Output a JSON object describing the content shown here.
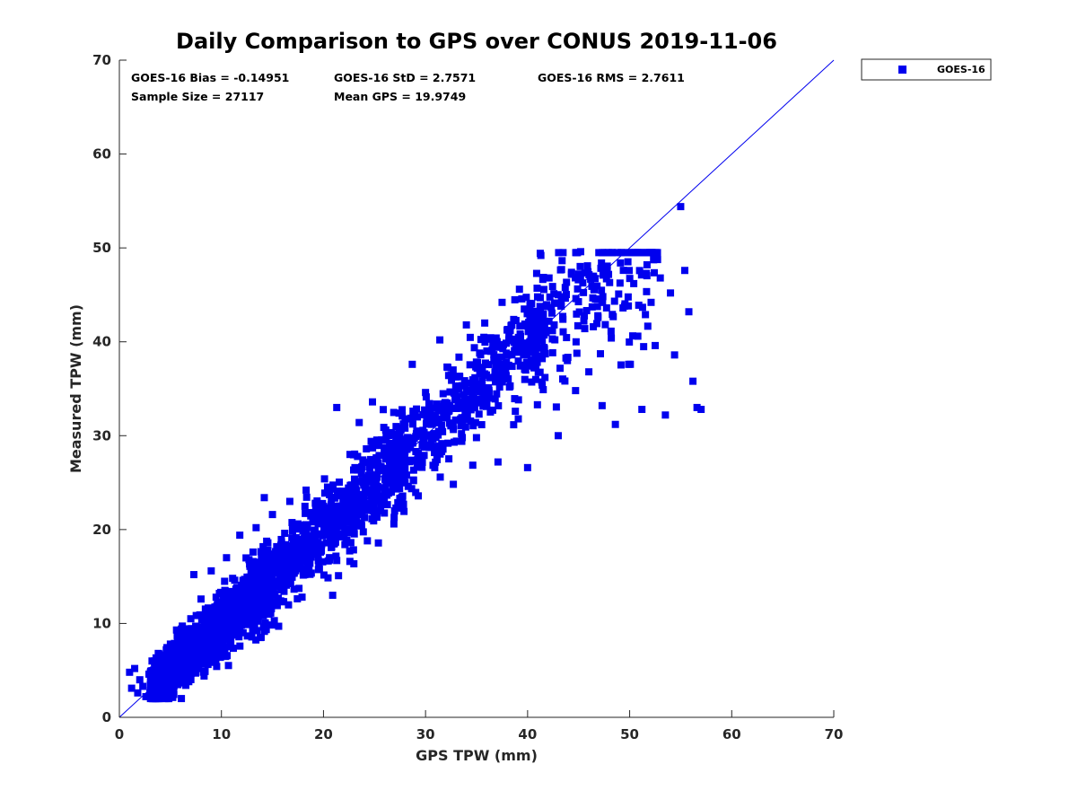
{
  "chart_data": {
    "type": "scatter",
    "title": "Daily Comparison to GPS over CONUS 2019-11-06",
    "xlabel": "GPS TPW (mm)",
    "ylabel": "Measured TPW (mm)",
    "xlim": [
      0,
      70
    ],
    "ylim": [
      0,
      70
    ],
    "xticks": [
      "0",
      "10",
      "20",
      "30",
      "40",
      "50",
      "60",
      "70"
    ],
    "yticks": [
      "0",
      "10",
      "20",
      "30",
      "40",
      "50",
      "60",
      "70"
    ],
    "grid": false,
    "legend_position": "outside-top-right",
    "reference_line": {
      "name": "1:1",
      "from": [
        0,
        0
      ],
      "to": [
        70,
        70
      ]
    },
    "stats": [
      "GOES-16 Bias = -0.14951",
      "GOES-16 StD = 2.7571",
      "GOES-16 RMS = 2.7611",
      "Sample Size = 27117",
      "Mean GPS = 19.9749"
    ],
    "series": [
      {
        "name": "GOES-16",
        "color": "#0000ee",
        "marker": "square",
        "sample_size": 27117,
        "bias": -0.14951,
        "std": 2.7571,
        "points": [
          [
            1.0,
            4.8
          ],
          [
            1.2,
            3.1
          ],
          [
            1.5,
            5.2
          ],
          [
            1.8,
            2.6
          ],
          [
            2.0,
            4.0
          ],
          [
            2.3,
            3.3
          ],
          [
            2.6,
            2.2
          ],
          [
            2.9,
            4.6
          ],
          [
            3.0,
            2.6
          ],
          [
            3.2,
            6.0
          ],
          [
            3.5,
            2.1
          ],
          [
            3.8,
            5.0
          ],
          [
            4.0,
            3.4
          ],
          [
            4.4,
            6.6
          ],
          [
            4.7,
            4.2
          ],
          [
            5.0,
            7.8
          ],
          [
            5.3,
            3.0
          ],
          [
            5.6,
            9.3
          ],
          [
            6.0,
            5.2
          ],
          [
            6.4,
            8.2
          ],
          [
            6.8,
            3.8
          ],
          [
            7.0,
            10.5
          ],
          [
            7.3,
            15.2
          ],
          [
            7.6,
            6.0
          ],
          [
            8.0,
            12.6
          ],
          [
            8.3,
            4.4
          ],
          [
            8.7,
            11.0
          ],
          [
            9.0,
            15.6
          ],
          [
            9.4,
            7.0
          ],
          [
            9.8,
            13.2
          ],
          [
            10.2,
            9.0
          ],
          [
            10.5,
            17.0
          ],
          [
            10.9,
            8.2
          ],
          [
            11.3,
            14.6
          ],
          [
            11.8,
            19.4
          ],
          [
            12.2,
            10.6
          ],
          [
            12.7,
            16.8
          ],
          [
            13.0,
            12.2
          ],
          [
            13.4,
            20.2
          ],
          [
            13.8,
            8.5
          ],
          [
            14.2,
            23.4
          ],
          [
            14.6,
            15.0
          ],
          [
            15.0,
            21.6
          ],
          [
            15.3,
            17.2
          ],
          [
            15.8,
            12.4
          ],
          [
            16.2,
            19.6
          ],
          [
            16.7,
            23.0
          ],
          [
            17.1,
            15.6
          ],
          [
            17.5,
            20.6
          ],
          [
            17.9,
            12.8
          ],
          [
            18.3,
            24.2
          ],
          [
            18.8,
            19.0
          ],
          [
            19.2,
            22.8
          ],
          [
            19.7,
            17.6
          ],
          [
            20.1,
            25.4
          ],
          [
            20.5,
            20.6
          ],
          [
            20.9,
            13.0
          ],
          [
            21.3,
            33.0
          ],
          [
            21.7,
            23.6
          ],
          [
            22.1,
            18.4
          ],
          [
            22.6,
            28.0
          ],
          [
            23.0,
            21.6
          ],
          [
            23.5,
            31.4
          ],
          [
            23.9,
            25.0
          ],
          [
            24.3,
            18.8
          ],
          [
            24.8,
            33.6
          ],
          [
            25.2,
            27.2
          ],
          [
            25.6,
            22.4
          ],
          [
            26.1,
            30.6
          ],
          [
            26.5,
            26.2
          ],
          [
            26.9,
            20.6
          ],
          [
            27.4,
            32.4
          ],
          [
            27.8,
            28.6
          ],
          [
            28.3,
            24.6
          ],
          [
            28.7,
            37.6
          ],
          [
            29.1,
            30.2
          ],
          [
            29.6,
            27.2
          ],
          [
            30.0,
            34.6
          ],
          [
            30.5,
            31.8
          ],
          [
            30.9,
            26.6
          ],
          [
            31.4,
            40.2
          ],
          [
            31.8,
            33.4
          ],
          [
            32.2,
            29.2
          ],
          [
            32.7,
            37.0
          ],
          [
            33.1,
            34.2
          ],
          [
            33.6,
            29.8
          ],
          [
            34.0,
            41.8
          ],
          [
            34.4,
            35.6
          ],
          [
            34.9,
            31.4
          ],
          [
            35.3,
            38.8
          ],
          [
            35.8,
            42.0
          ],
          [
            36.2,
            34.0
          ],
          [
            36.6,
            39.6
          ],
          [
            37.1,
            27.2
          ],
          [
            37.5,
            44.2
          ],
          [
            37.9,
            36.4
          ],
          [
            38.3,
            41.2
          ],
          [
            38.8,
            32.6
          ],
          [
            39.2,
            45.6
          ],
          [
            39.6,
            38.6
          ],
          [
            40.0,
            26.6
          ],
          [
            40.4,
            43.2
          ],
          [
            40.9,
            39.4
          ],
          [
            41.3,
            49.2
          ],
          [
            41.7,
            36.2
          ],
          [
            42.1,
            46.8
          ],
          [
            42.6,
            41.8
          ],
          [
            43.0,
            30.0
          ],
          [
            43.4,
            44.8
          ],
          [
            43.9,
            38.0
          ],
          [
            44.3,
            47.4
          ],
          [
            44.7,
            34.8
          ],
          [
            45.2,
            49.6
          ],
          [
            45.6,
            41.4
          ],
          [
            46.0,
            36.8
          ],
          [
            46.5,
            45.6
          ],
          [
            46.9,
            42.6
          ],
          [
            47.3,
            33.2
          ],
          [
            47.8,
            47.6
          ],
          [
            48.2,
            40.4
          ],
          [
            48.6,
            31.2
          ],
          [
            49.1,
            48.4
          ],
          [
            49.5,
            43.8
          ],
          [
            49.9,
            37.6
          ],
          [
            50.4,
            46.2
          ],
          [
            50.8,
            40.6
          ],
          [
            51.2,
            32.8
          ],
          [
            51.7,
            48.2
          ],
          [
            52.1,
            44.2
          ],
          [
            52.5,
            39.6
          ],
          [
            53.0,
            46.8
          ],
          [
            53.5,
            32.2
          ],
          [
            54.0,
            45.2
          ],
          [
            54.4,
            38.6
          ],
          [
            55.0,
            54.4
          ],
          [
            55.4,
            47.6
          ],
          [
            55.8,
            43.2
          ],
          [
            56.2,
            35.8
          ],
          [
            56.6,
            33.0
          ],
          [
            57.0,
            32.8
          ]
        ]
      }
    ]
  }
}
